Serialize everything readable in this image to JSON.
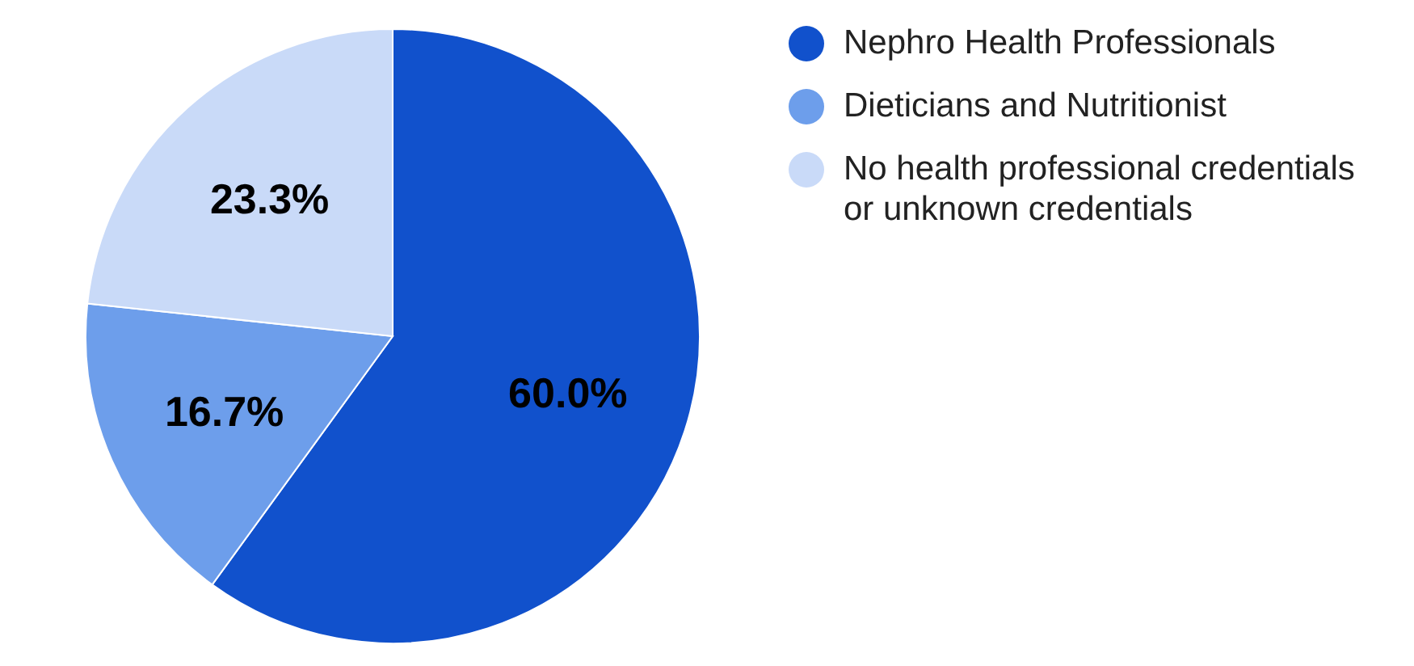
{
  "chart_data": {
    "type": "pie",
    "categories": [
      "Nephro Health Professionals",
      "Dieticians and Nutritionist",
      "No health professional credentials or unknown credentials"
    ],
    "values": [
      60.0,
      16.7,
      23.3
    ],
    "colors": [
      "#1151cc",
      "#6d9eeb",
      "#c9daf8"
    ],
    "value_labels": [
      "60.0%",
      "16.7%",
      "23.3%"
    ],
    "legend": "top right"
  }
}
